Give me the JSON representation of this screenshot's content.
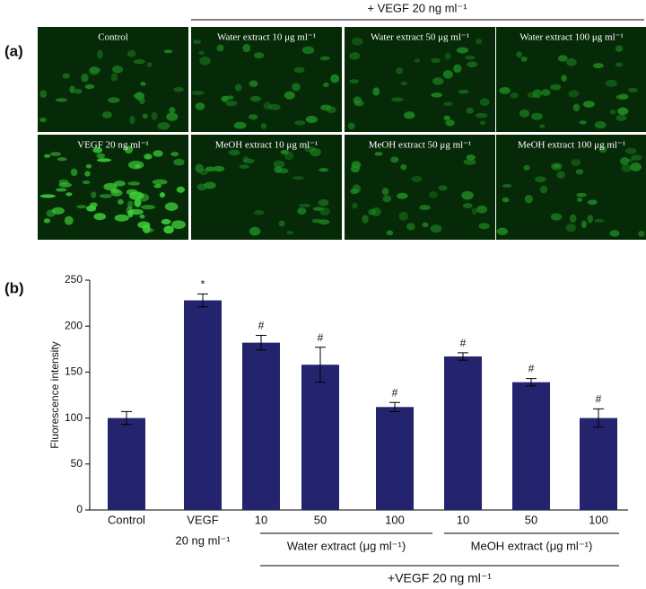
{
  "panel_a": {
    "label": "(a)",
    "header": "+ VEGF 20 ng ml⁻¹",
    "images": [
      {
        "label": "Control"
      },
      {
        "label": "Water extract 10 μg ml⁻¹"
      },
      {
        "label": "Water extract 50 μg ml⁻¹"
      },
      {
        "label": "Water extract 100 μg ml⁻¹"
      },
      {
        "label": "VEGF 20 ng ml⁻¹"
      },
      {
        "label": "MeOH extract 10 μg ml⁻¹"
      },
      {
        "label": "MeOH extract 50 μg ml⁻¹"
      },
      {
        "label": "MeOH extract 100 μg ml⁻¹"
      }
    ]
  },
  "chart_data": {
    "type": "bar",
    "panel_label": "(b)",
    "ylabel": "Fluorescence intensity",
    "categories": [
      "Control",
      "VEGF",
      "10",
      "50",
      "100",
      "10",
      "50",
      "100"
    ],
    "vegf_sublabel": "20 ng ml⁻¹",
    "values": [
      100,
      228,
      182,
      158,
      112,
      167,
      139,
      100
    ],
    "errors": [
      7,
      7,
      8,
      19,
      5,
      4,
      4,
      10
    ],
    "significance": [
      null,
      "*",
      "#",
      "#",
      "#",
      "#",
      "#",
      "#"
    ],
    "groups": [
      {
        "label": "Water extract (μg ml⁻¹)"
      },
      {
        "label": "MeOH extract (μg ml⁻¹)"
      }
    ],
    "footer": "+VEGF 20 ng ml⁻¹",
    "color": "#24246e",
    "ylim": [
      0,
      250
    ],
    "yticks": [
      0,
      50,
      100,
      150,
      200,
      250
    ]
  }
}
